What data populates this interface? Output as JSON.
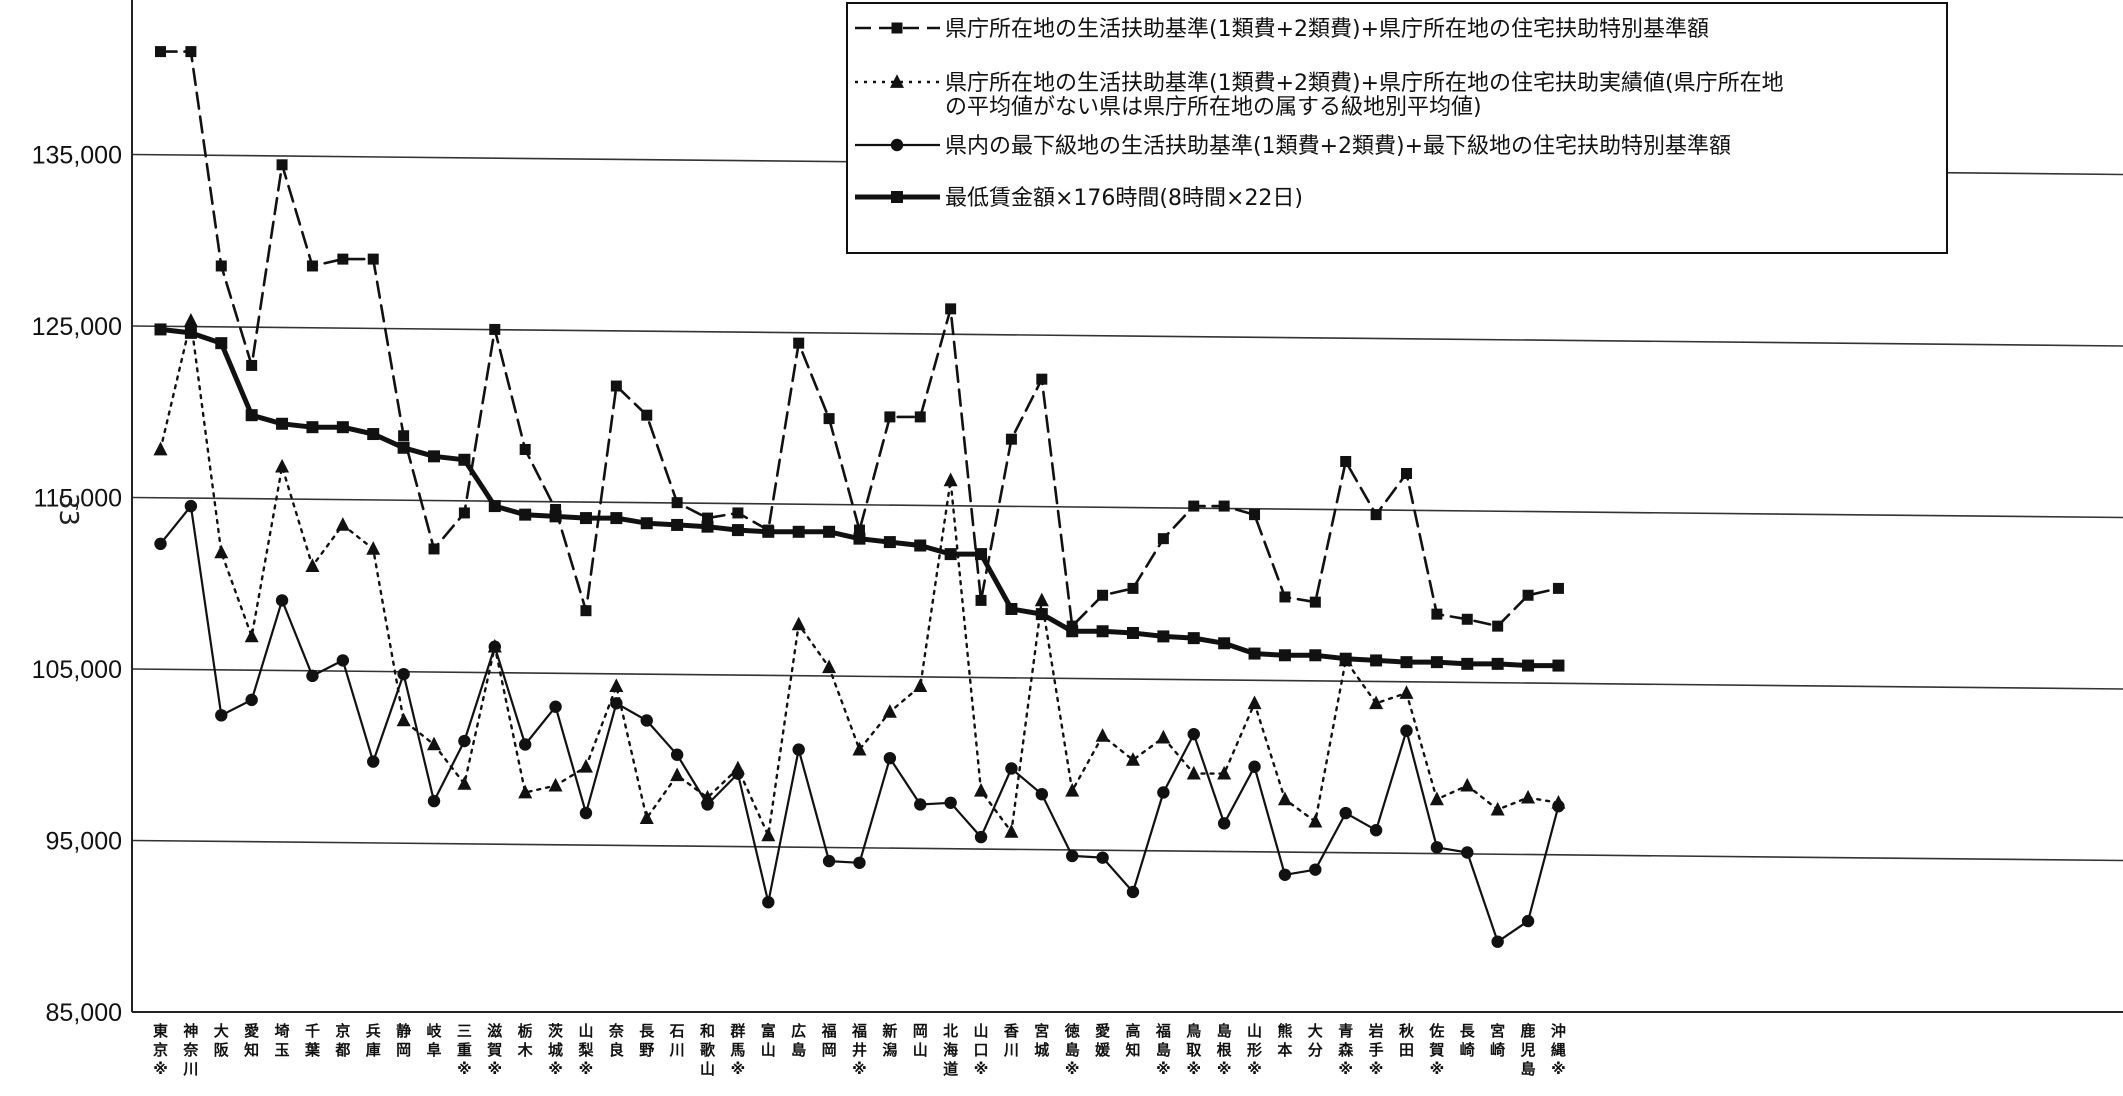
{
  "chart_data": {
    "type": "line",
    "title": "",
    "xlabel": "",
    "ylabel": "",
    "ylim": [
      85000,
      145000
    ],
    "yticks": [
      85000,
      95000,
      105000,
      115000,
      125000,
      135000
    ],
    "ytick_labels": [
      "85,000",
      "95,000",
      "105,000",
      "115,000",
      "125,000",
      "135,000"
    ],
    "grid": "horizontal",
    "legend_position": "top-right",
    "categories": [
      "東京※",
      "神奈川",
      "大阪",
      "愛知",
      "埼玉",
      "千葉",
      "京都",
      "兵庫",
      "静岡",
      "岐阜",
      "三重※",
      "滋賀※",
      "栃木",
      "茨城※",
      "山梨※",
      "奈良",
      "長野",
      "石川",
      "和歌山",
      "群馬※",
      "富山",
      "広島",
      "福岡",
      "福井※",
      "新潟",
      "岡山",
      "北海道",
      "山口※",
      "香川",
      "宮城",
      "徳島※",
      "愛媛",
      "高知",
      "福島※",
      "鳥取※",
      "島根※",
      "山形※",
      "熊本",
      "大分",
      "青森※",
      "岩手※",
      "秋田",
      "佐賀※",
      "長崎",
      "宮崎",
      "鹿児島",
      "沖縄※"
    ],
    "series": [
      {
        "name": "県庁所在地の生活扶助基準(1類費+2類費)+県庁所在地の住宅扶助特別基準額",
        "style": "dashed",
        "marker": "square",
        "values": [
          141000,
          141000,
          128500,
          122700,
          134400,
          128500,
          128900,
          128900,
          118600,
          112000,
          114100,
          124800,
          117800,
          114300,
          108400,
          121500,
          119800,
          114700,
          113800,
          114100,
          113100,
          124000,
          119600,
          113100,
          119700,
          119700,
          126000,
          109000,
          118400,
          121900,
          107500,
          109300,
          109700,
          112600,
          114500,
          114500,
          114000,
          109200,
          108900,
          117100,
          114000,
          116400,
          108200,
          107900,
          107500,
          109300,
          109700
        ]
      },
      {
        "name": "県庁所在地の生活扶助基準(1類費+2類費)+県庁所在地の住宅扶助実績値(県庁所在地の平均値がない県は県庁所在地の属する級地別平均値)",
        "style": "dotted",
        "marker": "triangle",
        "values": [
          117800,
          125300,
          111800,
          106900,
          116800,
          111000,
          113400,
          112000,
          102000,
          100600,
          98300,
          106300,
          97800,
          98200,
          99300,
          104000,
          96300,
          98800,
          97500,
          99200,
          95300,
          107600,
          105100,
          100300,
          102500,
          104000,
          116000,
          97900,
          95500,
          109000,
          97900,
          101100,
          99700,
          101000,
          98900,
          98900,
          103000,
          97400,
          96100,
          105500,
          103000,
          103600,
          97400,
          98200,
          96800,
          97500,
          97200
        ]
      },
      {
        "name": "県内の最下級地の生活扶助基準(1類費+2類費)+最下級地の住宅扶助特別基準額",
        "style": "thin-solid",
        "marker": "circle",
        "values": [
          112300,
          114500,
          102300,
          103200,
          109000,
          104600,
          105500,
          99600,
          104700,
          97300,
          100800,
          106300,
          100600,
          102800,
          96600,
          103000,
          102000,
          100000,
          97100,
          98900,
          91400,
          100300,
          93800,
          93700,
          99800,
          97100,
          97200,
          95200,
          99200,
          97700,
          94100,
          94000,
          92000,
          97800,
          101200,
          96000,
          99300,
          93000,
          93300,
          96600,
          95600,
          101400,
          94600,
          94300,
          89100,
          90300,
          97000
        ]
      },
      {
        "name": "最低賃金額×176時間(8時間×22日)",
        "style": "thick-solid",
        "marker": "square",
        "values": [
          124800,
          124600,
          124000,
          119800,
          119300,
          119100,
          119100,
          118700,
          117900,
          117400,
          117200,
          114500,
          114000,
          113900,
          113800,
          113800,
          113500,
          113400,
          113300,
          113100,
          113000,
          113000,
          113000,
          112600,
          112400,
          112200,
          111700,
          111700,
          108500,
          108200,
          107200,
          107200,
          107100,
          106900,
          106800,
          106500,
          105900,
          105800,
          105800,
          105600,
          105500,
          105400,
          105400,
          105300,
          105300,
          105200,
          105200
        ]
      }
    ]
  },
  "margin_mark": "33"
}
